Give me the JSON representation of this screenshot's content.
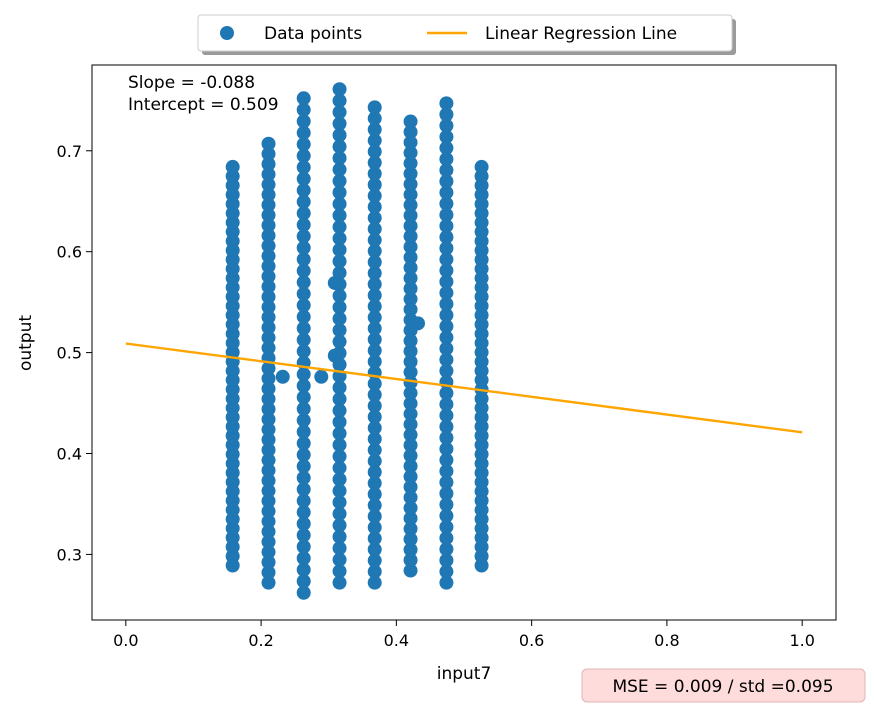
{
  "chart_data": {
    "type": "scatter",
    "title": "",
    "xlabel": "input7",
    "ylabel": "output",
    "xlim": [
      -0.05,
      1.05
    ],
    "ylim": [
      0.235,
      0.785
    ],
    "x_ticks": [
      0.0,
      0.2,
      0.4,
      0.6,
      0.8,
      1.0
    ],
    "y_ticks": [
      0.3,
      0.4,
      0.5,
      0.6,
      0.7
    ],
    "x_tick_labels": [
      "0.0",
      "0.2",
      "0.4",
      "0.6",
      "0.8",
      "1.0"
    ],
    "y_tick_labels": [
      "0.3",
      "0.4",
      "0.5",
      "0.6",
      "0.7"
    ],
    "grid": false,
    "legend": {
      "placement": "top-center",
      "entries": [
        {
          "label": "Data points",
          "marker": "circle"
        },
        {
          "label": "Linear Regression Line",
          "marker": "line"
        }
      ]
    },
    "series": [
      {
        "name": "Data points",
        "kind": "scatter",
        "color": "#1f77b4",
        "columns": [
          {
            "x": 0.158,
            "ymin": 0.289,
            "ymax": 0.684
          },
          {
            "x": 0.211,
            "ymin": 0.272,
            "ymax": 0.707
          },
          {
            "x": 0.263,
            "ymin": 0.262,
            "ymax": 0.752
          },
          {
            "x": 0.316,
            "ymin": 0.272,
            "ymax": 0.761
          },
          {
            "x": 0.368,
            "ymin": 0.272,
            "ymax": 0.743
          },
          {
            "x": 0.421,
            "ymin": 0.284,
            "ymax": 0.729
          },
          {
            "x": 0.474,
            "ymin": 0.272,
            "ymax": 0.747
          },
          {
            "x": 0.526,
            "ymin": 0.289,
            "ymax": 0.684
          }
        ],
        "points": [
          {
            "x": 0.232,
            "y": 0.476
          },
          {
            "x": 0.289,
            "y": 0.476
          },
          {
            "x": 0.309,
            "y": 0.569
          },
          {
            "x": 0.309,
            "y": 0.497
          },
          {
            "x": 0.432,
            "y": 0.529
          }
        ]
      },
      {
        "name": "Linear Regression Line",
        "kind": "line",
        "color": "#ffa500",
        "x": [
          0.0,
          1.0
        ],
        "y": [
          0.509,
          0.421
        ]
      }
    ],
    "annotations": {
      "slope_text": "Slope = -0.088",
      "intercept_text": "Intercept = 0.509",
      "mse_text": "MSE = 0.009 / std =0.095"
    }
  },
  "colors": {
    "points": "#1f77b4",
    "line": "#ffa500",
    "mse_box_fill": "#ffdcdc",
    "mse_box_edge": "#e0b4b4"
  }
}
